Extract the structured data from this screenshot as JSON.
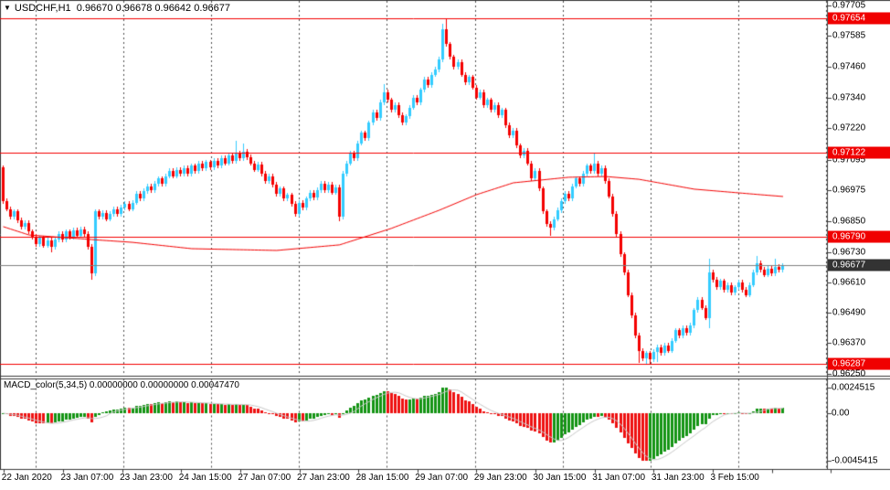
{
  "window": {
    "title_text": "USDCHF,H1  0.96670 0.96678 0.96642 0.96677",
    "symbol": "USDCHF",
    "timeframe": "H1",
    "ohlc_display": {
      "open": "0.96670",
      "high": "0.96678",
      "low": "0.96642",
      "close": "0.96677"
    }
  },
  "chart_data": {
    "type": "candlestick",
    "title": "USDCHF,H1",
    "ylabel": "price",
    "xlabel": "time",
    "grid": "vertical-dashed",
    "price_axis": {
      "ticks": [
        "0.97705",
        "0.97585",
        "0.97460",
        "0.97340",
        "0.97220",
        "0.97095",
        "0.96975",
        "0.96850",
        "0.96730",
        "0.96610",
        "0.96490",
        "0.96370",
        "0.96250"
      ],
      "range": [
        0.9625,
        0.97705
      ]
    },
    "time_axis": {
      "labels": [
        "22 Jan 2020",
        "23 Jan 07:00",
        "23 Jan 23:00",
        "24 Jan 15:00",
        "27 Jan 07:00",
        "27 Jan 23:00",
        "28 Jan 15:00",
        "29 Jan 07:00",
        "29 Jan 23:00",
        "30 Jan 15:00",
        "31 Jan 07:00",
        "31 Jan 23:00",
        "3 Feb 15:00"
      ]
    },
    "h_lines": [
      {
        "label": "0.97654",
        "price": 0.97654
      },
      {
        "label": "0.97122",
        "price": 0.97122
      },
      {
        "label": "0.96790",
        "price": 0.9679
      },
      {
        "label": "0.96287",
        "price": 0.96287
      }
    ],
    "current_price": {
      "label": "0.96677",
      "price": 0.96677
    },
    "badges": [
      {
        "label": "0.97654",
        "price": 0.97654,
        "style": "alert"
      },
      {
        "label": "0.97122",
        "price": 0.97122,
        "style": "alert"
      },
      {
        "label": "0.96790",
        "price": 0.9679,
        "style": "alert"
      },
      {
        "label": "0.96287",
        "price": 0.96287,
        "style": "alert"
      },
      {
        "label": "0.96677",
        "price": 0.96677,
        "style": "current"
      }
    ],
    "candles": {
      "first_open": 0.97065,
      "default_wick": 0.0001,
      "closes": [
        0.96931,
        0.969,
        0.9687,
        0.9689,
        0.96855,
        0.9683,
        0.96845,
        0.9681,
        0.9679,
        0.9676,
        0.96785,
        0.96755,
        0.96775,
        0.9675,
        0.9678,
        0.968,
        0.9678,
        0.9681,
        0.9679,
        0.96815,
        0.96795,
        0.9682,
        0.968,
        0.9675,
        0.96645,
        0.9689,
        0.9687,
        0.96885,
        0.9686,
        0.9688,
        0.969,
        0.9688,
        0.96905,
        0.9692,
        0.969,
        0.96925,
        0.9696,
        0.9694,
        0.9697,
        0.9699,
        0.96975,
        0.97,
        0.9702,
        0.97,
        0.9703,
        0.9705,
        0.9703,
        0.97055,
        0.9704,
        0.9706,
        0.9704,
        0.9707,
        0.9705,
        0.9708,
        0.9706,
        0.97085,
        0.97065,
        0.9709,
        0.9707,
        0.971,
        0.9708,
        0.9711,
        0.9709,
        0.9712,
        0.971,
        0.97125,
        0.97105,
        0.9708,
        0.97055,
        0.97075,
        0.9704,
        0.9701,
        0.9703,
        0.96995,
        0.9696,
        0.9698,
        0.9694,
        0.96955,
        0.9692,
        0.9688,
        0.96925,
        0.96905,
        0.9694,
        0.96965,
        0.96945,
        0.96975,
        0.97,
        0.96975,
        0.96995,
        0.96965,
        0.96985,
        0.9687,
        0.9704,
        0.9708,
        0.9712,
        0.971,
        0.9716,
        0.972,
        0.9718,
        0.9724,
        0.9728,
        0.9726,
        0.9732,
        0.9736,
        0.9733,
        0.9729,
        0.9731,
        0.9727,
        0.9724,
        0.97265,
        0.973,
        0.9734,
        0.9732,
        0.9737,
        0.9741,
        0.9739,
        0.9743,
        0.9745,
        0.9749,
        0.9761,
        0.9755,
        0.975,
        0.9746,
        0.9748,
        0.9743,
        0.974,
        0.9742,
        0.9738,
        0.9734,
        0.9736,
        0.9731,
        0.9733,
        0.9729,
        0.9731,
        0.9727,
        0.9729,
        0.9723,
        0.9719,
        0.9721,
        0.9715,
        0.9711,
        0.9713,
        0.9708,
        0.9702,
        0.9705,
        0.9698,
        0.9689,
        0.9684,
        0.96825,
        0.9686,
        0.96895,
        0.9693,
        0.9696,
        0.9694,
        0.9699,
        0.9702,
        0.97,
        0.9704,
        0.9707,
        0.9705,
        0.9708,
        0.9704,
        0.9706,
        0.9701,
        0.9695,
        0.9688,
        0.968,
        0.9672,
        0.9665,
        0.9656,
        0.9648,
        0.964,
        0.9634,
        0.9631,
        0.9633,
        0.96305,
        0.96335,
        0.96355,
        0.9633,
        0.9636,
        0.9634,
        0.9638,
        0.9642,
        0.964,
        0.9643,
        0.9641,
        0.9644,
        0.965,
        0.9654,
        0.9651,
        0.9647,
        0.9665,
        0.9662,
        0.9659,
        0.96615,
        0.9658,
        0.966,
        0.9657,
        0.9659,
        0.9661,
        0.9658,
        0.9656,
        0.966,
        0.9665,
        0.96685,
        0.9666,
        0.9664,
        0.96665,
        0.96645,
        0.9667,
        0.9666,
        0.96677
      ],
      "wick_overrides": {
        "0": {
          "h": 0.9707
        },
        "13": {
          "l": 0.96728
        },
        "24": {
          "l": 0.9662
        },
        "63": {
          "h": 0.97168
        },
        "65": {
          "h": 0.9716
        },
        "91": {
          "l": 0.96852
        },
        "103": {
          "h": 0.97392
        },
        "119": {
          "h": 0.97632
        },
        "120": {
          "h": 0.97654
        },
        "148": {
          "l": 0.96795
        },
        "160": {
          "h": 0.9712
        },
        "172": {
          "l": 0.96292
        },
        "174": {
          "l": 0.96288
        },
        "175": {
          "l": 0.96289
        },
        "177": {
          "l": 0.96295
        },
        "191": {
          "h": 0.96705,
          "l": 0.9643
        },
        "204": {
          "h": 0.96715
        },
        "209": {
          "h": 0.96705
        }
      }
    },
    "ma_line": {
      "name": "moving-average",
      "waypoints": [
        [
          0,
          0.9683
        ],
        [
          7,
          0.96797
        ],
        [
          24,
          0.96779
        ],
        [
          35,
          0.96768
        ],
        [
          51,
          0.96743
        ],
        [
          74,
          0.96736
        ],
        [
          91,
          0.96758
        ],
        [
          105,
          0.96823
        ],
        [
          118,
          0.96895
        ],
        [
          128,
          0.96956
        ],
        [
          138,
          0.97003
        ],
        [
          153,
          0.97025
        ],
        [
          163,
          0.97028
        ],
        [
          172,
          0.97017
        ],
        [
          187,
          0.96978
        ],
        [
          205,
          0.96956
        ],
        [
          211,
          0.96949
        ]
      ]
    },
    "macd": {
      "label_text": "MACD_color(5,34,5) 0.00000000 0.00000000 0.00047470",
      "params": {
        "fast": 5,
        "slow": 34,
        "signal": 5
      },
      "values_display": [
        "0.00000000",
        "0.00000000",
        "0.00047470"
      ],
      "scale": {
        "max": "0.0024515",
        "zero": "0.00",
        "min": "-0.0045415"
      }
    },
    "colors": {
      "bull": "#33ccff",
      "bear": "#f40000",
      "line_red": "#f40000",
      "ma": "#f40000",
      "macd_up": "#149414",
      "macd_down": "#ee1111",
      "macd_signal": "#c8c8c8",
      "current_line": "#808080",
      "badge_alert_bg": "#f00000",
      "badge_current_bg": "#333333",
      "grid": "#4d4d4d",
      "border": "#3a3a3a",
      "text": "#000000",
      "background": "#ffffff"
    }
  }
}
